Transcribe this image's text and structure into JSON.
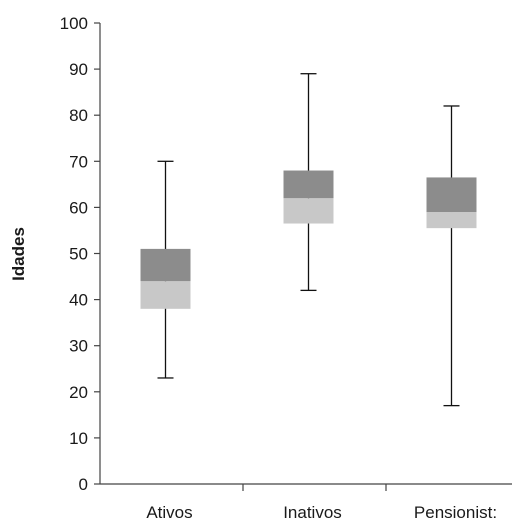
{
  "chart_data": {
    "type": "boxplot",
    "title": "",
    "xlabel": "",
    "ylabel": "Idades",
    "ylim": [
      0,
      100
    ],
    "yticks": [
      0,
      10,
      20,
      30,
      40,
      50,
      60,
      70,
      80,
      90,
      100
    ],
    "grid": false,
    "categories": [
      "Ativos",
      "Inativos",
      "Pensionist:"
    ],
    "boxes": [
      {
        "category": "Ativos",
        "min": 23,
        "q1": 38,
        "median": 44,
        "q3": 51,
        "max": 70
      },
      {
        "category": "Inativos",
        "min": 42,
        "q1": 56.5,
        "median": 62,
        "q3": 68,
        "max": 89
      },
      {
        "category": "Pensionist:",
        "min": 17,
        "q1": 55.5,
        "median": 59,
        "q3": 66.5,
        "max": 82
      }
    ],
    "colors": {
      "upper_box": "#8c8c8c",
      "lower_box": "#c8c8c8",
      "whisker": "#111111",
      "axis": "#444444"
    }
  }
}
